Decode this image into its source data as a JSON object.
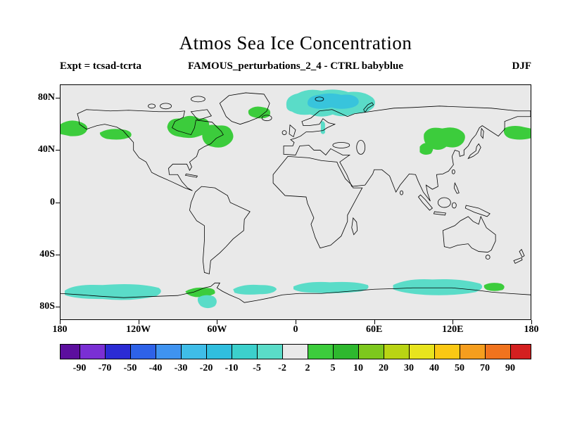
{
  "chart_data": {
    "type": "heatmap",
    "title": "Atmos Sea Ice Concentration",
    "subtitle_left": "Expt = tcsad-tcrta",
    "subtitle_center": "FAMOUS_perturbations_2_4 - CTRL babyblue",
    "season": "DJF",
    "projection": "equirectangular world map",
    "x_axis": {
      "range": [
        -180,
        180
      ],
      "ticks": [
        {
          "label": "180",
          "lon": -180
        },
        {
          "label": "120W",
          "lon": -120
        },
        {
          "label": "60W",
          "lon": -60
        },
        {
          "label": "0",
          "lon": 0
        },
        {
          "label": "60E",
          "lon": 60
        },
        {
          "label": "120E",
          "lon": 120
        },
        {
          "label": "180",
          "lon": 180
        }
      ]
    },
    "y_axis": {
      "range": [
        -90,
        90
      ],
      "ticks": [
        {
          "label": "80N",
          "lat": 80
        },
        {
          "label": "40N",
          "lat": 40
        },
        {
          "label": "0",
          "lat": 0
        },
        {
          "label": "40S",
          "lat": -40
        },
        {
          "label": "80S",
          "lat": -80
        }
      ]
    },
    "colorbar": {
      "boundaries": [
        -90,
        -70,
        -50,
        -40,
        -30,
        -20,
        -10,
        -5,
        -2,
        2,
        5,
        10,
        20,
        30,
        40,
        50,
        70,
        90
      ],
      "labels": [
        "-90",
        "-70",
        "-50",
        "-40",
        "-30",
        "-20",
        "-10",
        "-5",
        "-2",
        "2",
        "5",
        "10",
        "20",
        "30",
        "40",
        "50",
        "70",
        "90"
      ],
      "colors": [
        "#5c0f9e",
        "#7a2fd4",
        "#2b2bd4",
        "#2e62e8",
        "#3f93f0",
        "#3fbde8",
        "#30bede",
        "#3cd0cc",
        "#5adcc8",
        "#e9e9e9",
        "#3ccc3c",
        "#2eb82e",
        "#7dc81e",
        "#b9d414",
        "#e8e41e",
        "#fac814",
        "#f59e1e",
        "#f0731e",
        "#d42020"
      ]
    },
    "map_colors": {
      "background": "#e9e9e9",
      "coastline": "#000000",
      "positive_patch": "#3ccc3c",
      "negative_patch": "#5adcc8",
      "negative_inner_patch": "#38c4dc"
    },
    "anomaly_regions": [
      {
        "region": "Western Bering Sea (near dateline, left edge)",
        "sign": "positive",
        "approx_value": "+2 to +10"
      },
      {
        "region": "Gulf of Alaska",
        "sign": "positive",
        "approx_value": "+2 to +10"
      },
      {
        "region": "Hudson Bay",
        "sign": "positive",
        "approx_value": "+2 to +10"
      },
      {
        "region": "Labrador Sea / Newfoundland",
        "sign": "positive",
        "approx_value": "+2 to +10"
      },
      {
        "region": "Southeast of Greenland",
        "sign": "positive",
        "approx_value": "+2 to +5"
      },
      {
        "region": "Sea of Okhotsk / Sea of Japan / Korea coast",
        "sign": "positive",
        "approx_value": "+2 to +10"
      },
      {
        "region": "Kamchatka / western Bering Sea (right edge)",
        "sign": "positive",
        "approx_value": "+2 to +10"
      },
      {
        "region": "Barents / Greenland / Norwegian Seas",
        "sign": "negative",
        "approx_value": "-2 to -20"
      },
      {
        "region": "Baltic / Scandinavian coast",
        "sign": "negative",
        "approx_value": "-2 to -5"
      },
      {
        "region": "Southern Ocean ring, several patches",
        "sign": "negative",
        "approx_value": "-2 to -10"
      },
      {
        "region": "Southern Ocean near Antarctic Peninsula and 120E",
        "sign": "positive",
        "approx_value": "+2 to +5"
      }
    ]
  }
}
